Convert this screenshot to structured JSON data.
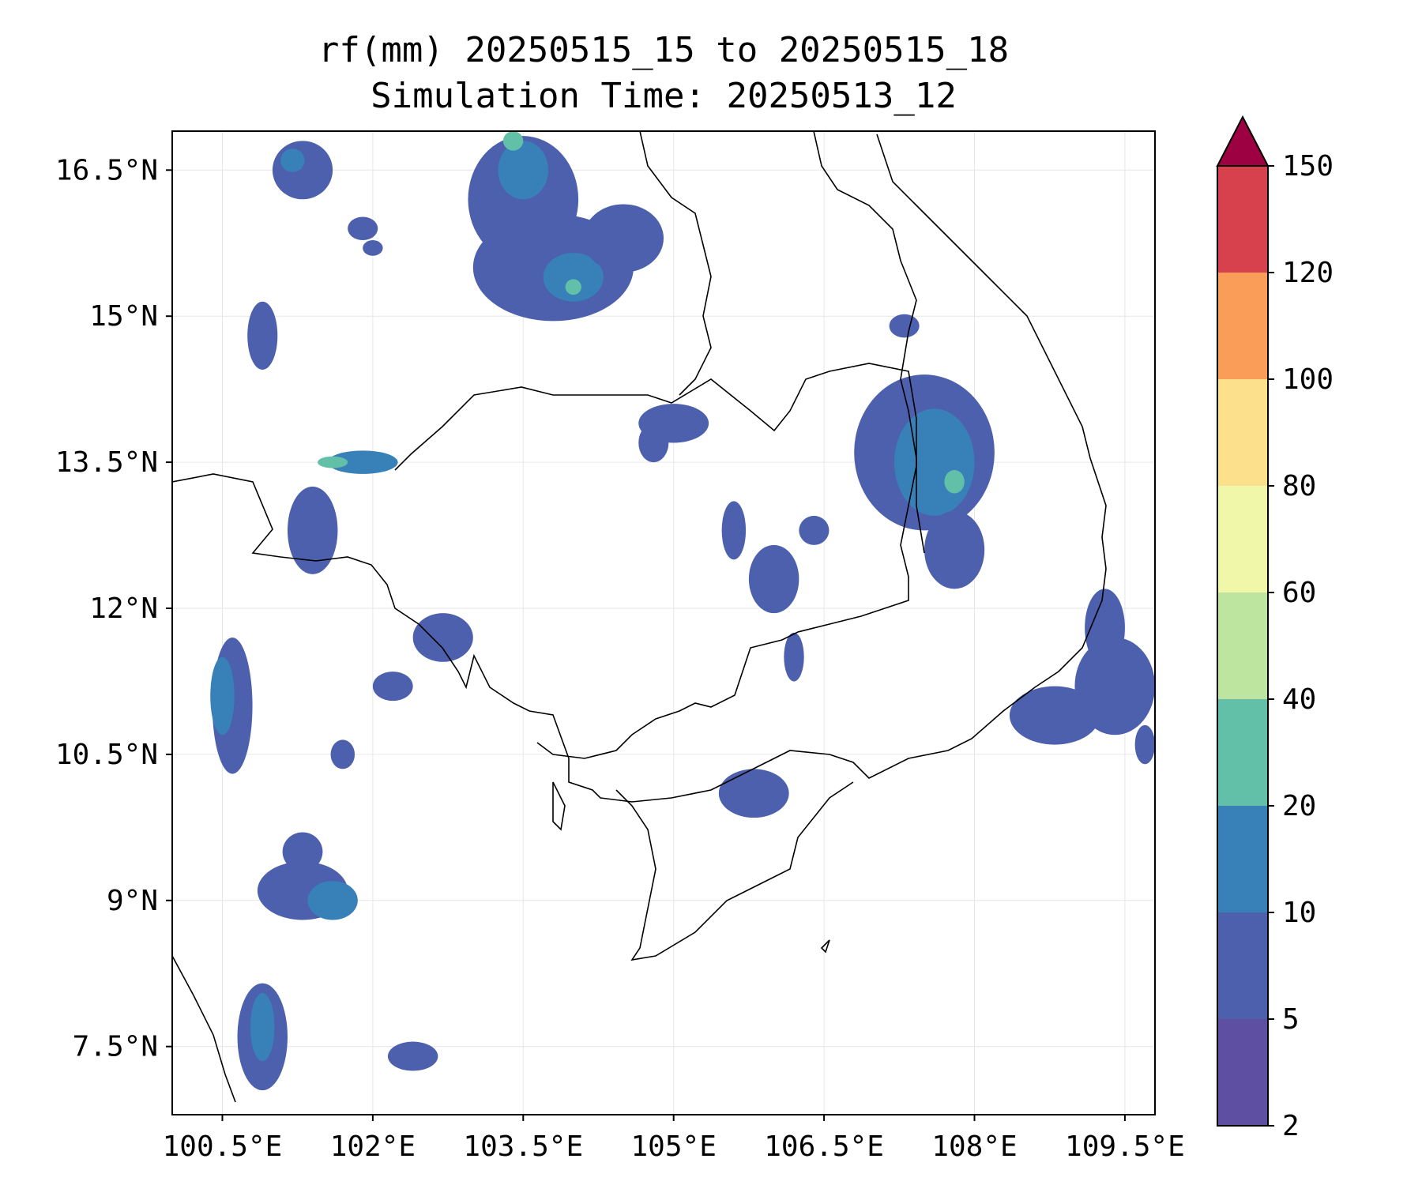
{
  "title": "rf(mm) 20250515_15 to 20250515_18",
  "subtitle": "Simulation Time: 20250513_12",
  "map": {
    "lon_range": [
      100.0,
      109.8
    ],
    "lat_range": [
      6.8,
      16.9
    ],
    "lon_ticks": [
      {
        "v": 100.5,
        "label": "100.5°E"
      },
      {
        "v": 102.0,
        "label": "102°E"
      },
      {
        "v": 103.5,
        "label": "103.5°E"
      },
      {
        "v": 105.0,
        "label": "105°E"
      },
      {
        "v": 106.5,
        "label": "106.5°E"
      },
      {
        "v": 108.0,
        "label": "108°E"
      },
      {
        "v": 109.5,
        "label": "109.5°E"
      }
    ],
    "lat_ticks": [
      {
        "v": 7.5,
        "label": "7.5°N"
      },
      {
        "v": 9.0,
        "label": "9°N"
      },
      {
        "v": 10.5,
        "label": "10.5°N"
      },
      {
        "v": 12.0,
        "label": "12°N"
      },
      {
        "v": 13.5,
        "label": "13.5°N"
      },
      {
        "v": 15.0,
        "label": "15°N"
      },
      {
        "v": 16.5,
        "label": "16.5°N"
      }
    ],
    "grid": true
  },
  "colorbar": {
    "levels": [
      "2",
      "5",
      "10",
      "20",
      "40",
      "60",
      "80",
      "100",
      "120",
      "150"
    ],
    "colors": [
      "#5e4fa2",
      "#4c60ad",
      "#3881b8",
      "#62c0a9",
      "#bde5a0",
      "#f1f7a9",
      "#fde08b",
      "#f99d59",
      "#d7414e"
    ],
    "extend_color": "#9e0142",
    "extend": "max"
  },
  "colors": {
    "light": "#4c60ad",
    "medium": "#3881b8",
    "heavy": "#62c0a9",
    "peak": "#bde5a0"
  },
  "rain_patches": [
    {
      "lon": 101.3,
      "lat": 16.5,
      "rx": 0.3,
      "ry": 0.3,
      "level": "light"
    },
    {
      "lon": 101.2,
      "lat": 16.6,
      "rx": 0.12,
      "ry": 0.12,
      "level": "medium"
    },
    {
      "lon": 103.5,
      "lat": 16.2,
      "rx": 0.55,
      "ry": 0.65,
      "level": "light"
    },
    {
      "lon": 103.5,
      "lat": 16.5,
      "rx": 0.25,
      "ry": 0.3,
      "level": "medium"
    },
    {
      "lon": 103.4,
      "lat": 16.8,
      "rx": 0.1,
      "ry": 0.1,
      "level": "heavy"
    },
    {
      "lon": 103.8,
      "lat": 15.5,
      "rx": 0.8,
      "ry": 0.55,
      "level": "light"
    },
    {
      "lon": 104.0,
      "lat": 15.4,
      "rx": 0.3,
      "ry": 0.25,
      "level": "medium"
    },
    {
      "lon": 104.0,
      "lat": 15.3,
      "rx": 0.08,
      "ry": 0.08,
      "level": "heavy"
    },
    {
      "lon": 104.5,
      "lat": 15.8,
      "rx": 0.4,
      "ry": 0.35,
      "level": "light"
    },
    {
      "lon": 101.9,
      "lat": 15.9,
      "rx": 0.15,
      "ry": 0.12,
      "level": "light"
    },
    {
      "lon": 102.0,
      "lat": 15.7,
      "rx": 0.1,
      "ry": 0.08,
      "level": "light"
    },
    {
      "lon": 100.9,
      "lat": 14.8,
      "rx": 0.15,
      "ry": 0.35,
      "level": "light"
    },
    {
      "lon": 107.5,
      "lat": 13.6,
      "rx": 0.7,
      "ry": 0.8,
      "level": "light"
    },
    {
      "lon": 107.6,
      "lat": 13.5,
      "rx": 0.4,
      "ry": 0.55,
      "level": "medium"
    },
    {
      "lon": 107.8,
      "lat": 13.3,
      "rx": 0.1,
      "ry": 0.12,
      "level": "heavy"
    },
    {
      "lon": 107.8,
      "lat": 12.6,
      "rx": 0.3,
      "ry": 0.4,
      "level": "light"
    },
    {
      "lon": 107.3,
      "lat": 14.9,
      "rx": 0.15,
      "ry": 0.12,
      "level": "light"
    },
    {
      "lon": 105.0,
      "lat": 13.9,
      "rx": 0.35,
      "ry": 0.2,
      "level": "light"
    },
    {
      "lon": 104.8,
      "lat": 13.7,
      "rx": 0.15,
      "ry": 0.2,
      "level": "light"
    },
    {
      "lon": 106.0,
      "lat": 12.3,
      "rx": 0.25,
      "ry": 0.35,
      "level": "light"
    },
    {
      "lon": 105.6,
      "lat": 12.8,
      "rx": 0.12,
      "ry": 0.3,
      "level": "light"
    },
    {
      "lon": 106.4,
      "lat": 12.8,
      "rx": 0.15,
      "ry": 0.15,
      "level": "light"
    },
    {
      "lon": 101.9,
      "lat": 13.5,
      "rx": 0.35,
      "ry": 0.12,
      "level": "medium"
    },
    {
      "lon": 101.6,
      "lat": 13.5,
      "rx": 0.15,
      "ry": 0.06,
      "level": "heavy"
    },
    {
      "lon": 101.4,
      "lat": 12.8,
      "rx": 0.25,
      "ry": 0.45,
      "level": "light"
    },
    {
      "lon": 100.6,
      "lat": 11.0,
      "rx": 0.2,
      "ry": 0.7,
      "level": "light"
    },
    {
      "lon": 100.5,
      "lat": 11.1,
      "rx": 0.12,
      "ry": 0.4,
      "level": "medium"
    },
    {
      "lon": 102.7,
      "lat": 11.7,
      "rx": 0.3,
      "ry": 0.25,
      "level": "light"
    },
    {
      "lon": 102.2,
      "lat": 11.2,
      "rx": 0.2,
      "ry": 0.15,
      "level": "light"
    },
    {
      "lon": 101.7,
      "lat": 10.5,
      "rx": 0.12,
      "ry": 0.15,
      "level": "light"
    },
    {
      "lon": 101.3,
      "lat": 9.5,
      "rx": 0.2,
      "ry": 0.2,
      "level": "light"
    },
    {
      "lon": 101.3,
      "lat": 9.1,
      "rx": 0.45,
      "ry": 0.3,
      "level": "light"
    },
    {
      "lon": 101.6,
      "lat": 9.0,
      "rx": 0.25,
      "ry": 0.2,
      "level": "medium"
    },
    {
      "lon": 100.9,
      "lat": 7.6,
      "rx": 0.25,
      "ry": 0.55,
      "level": "light"
    },
    {
      "lon": 100.9,
      "lat": 7.7,
      "rx": 0.12,
      "ry": 0.35,
      "level": "medium"
    },
    {
      "lon": 102.4,
      "lat": 7.4,
      "rx": 0.25,
      "ry": 0.15,
      "level": "light"
    },
    {
      "lon": 105.8,
      "lat": 10.1,
      "rx": 0.35,
      "ry": 0.25,
      "level": "light"
    },
    {
      "lon": 106.2,
      "lat": 11.5,
      "rx": 0.1,
      "ry": 0.25,
      "level": "light"
    },
    {
      "lon": 108.8,
      "lat": 10.9,
      "rx": 0.45,
      "ry": 0.3,
      "level": "light"
    },
    {
      "lon": 109.4,
      "lat": 11.2,
      "rx": 0.4,
      "ry": 0.5,
      "level": "light"
    },
    {
      "lon": 109.3,
      "lat": 11.8,
      "rx": 0.2,
      "ry": 0.4,
      "level": "light"
    },
    {
      "lon": 109.7,
      "lat": 10.6,
      "rx": 0.1,
      "ry": 0.2,
      "level": "light"
    }
  ]
}
